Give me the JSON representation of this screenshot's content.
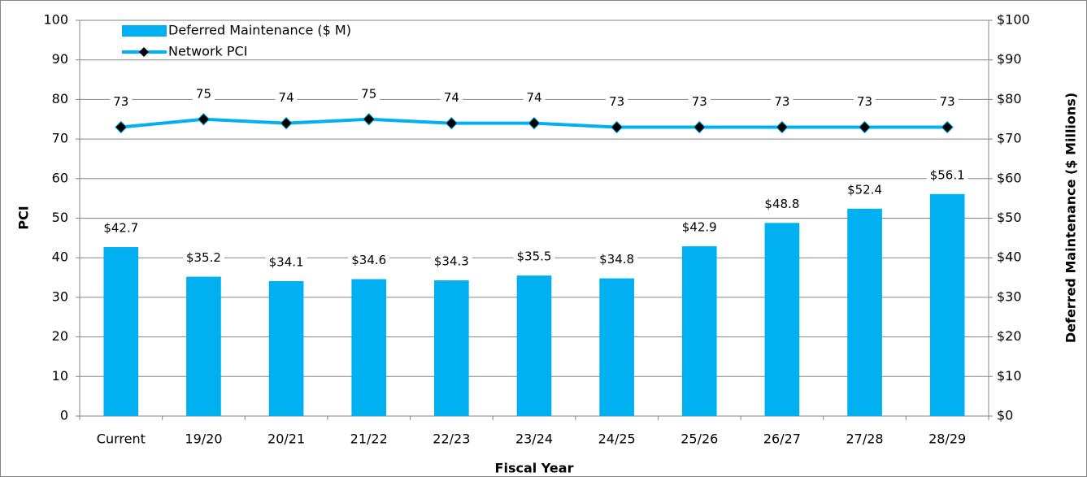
{
  "chart_data": {
    "type": "bar",
    "x_label": "Fiscal Year",
    "y_label": "PCI",
    "y2_label": "Deferred Maintenance ($ Millions)",
    "categories": [
      "Current",
      "19/20",
      "20/21",
      "21/22",
      "22/23",
      "23/24",
      "24/25",
      "25/26",
      "26/27",
      "27/28",
      "28/29"
    ],
    "series": [
      {
        "name": "Deferred Maintenance ($ M)",
        "type": "bar",
        "axis": "y2",
        "color": "#00b0f0",
        "values": [
          42.7,
          35.2,
          34.1,
          34.6,
          34.3,
          35.5,
          34.8,
          42.9,
          48.8,
          52.4,
          56.1
        ],
        "value_labels": [
          "$42.7",
          "$35.2",
          "$34.1",
          "$34.6",
          "$34.3",
          "$35.5",
          "$34.8",
          "$42.9",
          "$48.8",
          "$52.4",
          "$56.1"
        ]
      },
      {
        "name": "Network PCI",
        "type": "line",
        "color": "#00b0f0",
        "marker_color": "#000000",
        "values": [
          73,
          75,
          74,
          75,
          74,
          74,
          73,
          73,
          73,
          73,
          73
        ]
      }
    ],
    "ylim": [
      0,
      100
    ],
    "yticks": [
      0,
      10,
      20,
      30,
      40,
      50,
      60,
      70,
      80,
      90,
      100
    ],
    "y2lim": [
      0,
      100
    ],
    "y2ticks": [
      {
        "value": 0,
        "label": "$0"
      },
      {
        "value": 10,
        "label": "$10"
      },
      {
        "value": 20,
        "label": "$20"
      },
      {
        "value": 30,
        "label": "$30"
      },
      {
        "value": 40,
        "label": "$40"
      },
      {
        "value": 50,
        "label": "$50"
      },
      {
        "value": 60,
        "label": "$60"
      },
      {
        "value": 70,
        "label": "$70"
      },
      {
        "value": 80,
        "label": "$80"
      },
      {
        "value": 90,
        "label": "$90"
      },
      {
        "value": 100,
        "label": "$100"
      }
    ],
    "grid": true,
    "legend": "top-left"
  }
}
